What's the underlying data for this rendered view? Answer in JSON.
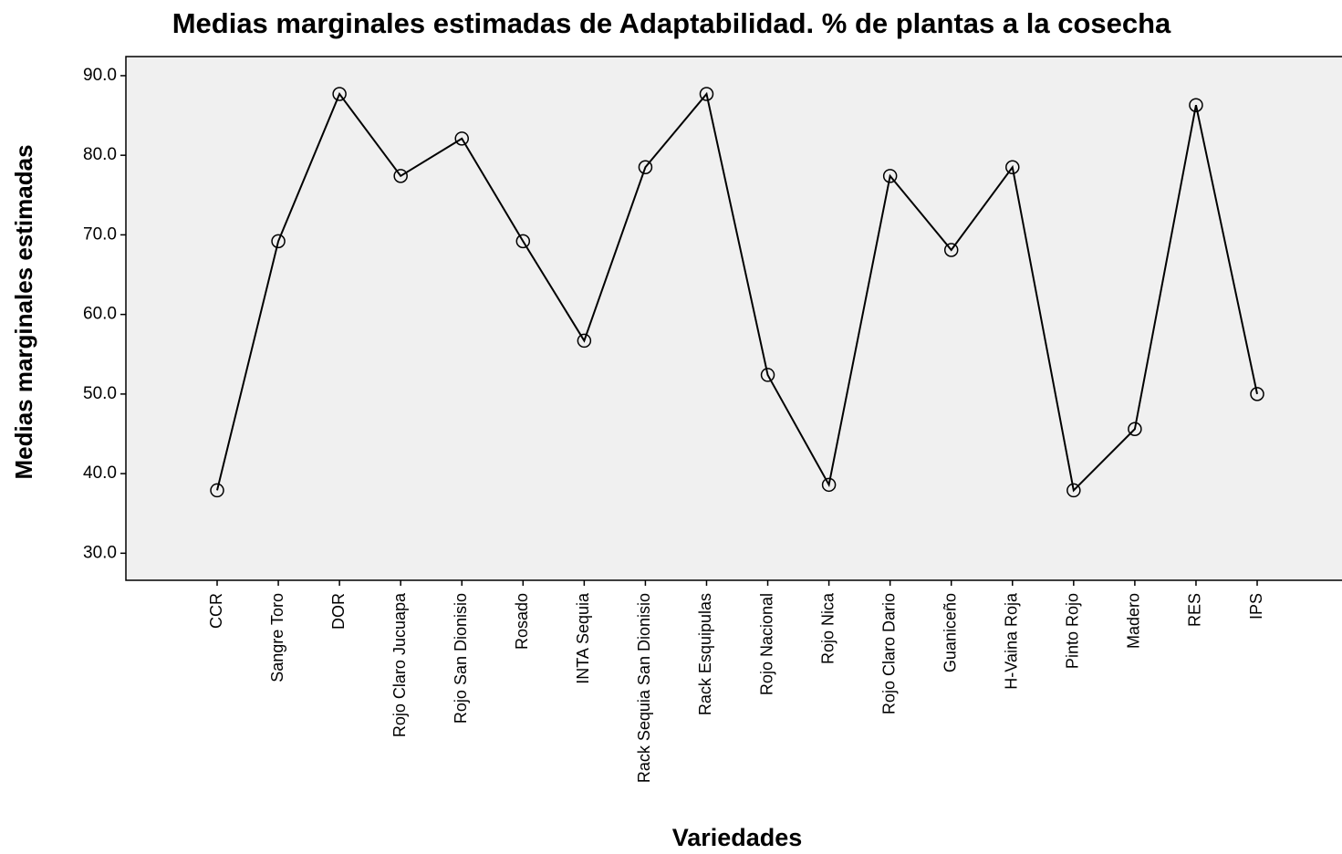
{
  "chart_data": {
    "type": "line",
    "title": "Medias marginales estimadas de Adaptabilidad. % de plantas a la cosecha",
    "x_label": "Variedades",
    "y_label": "Medias marginales estimadas",
    "categories": [
      "CCR",
      "Sangre Toro",
      "DOR",
      "Rojo Claro Jucuapa",
      "Rojo San Dionisio",
      "Rosado",
      "INTA Sequia",
      "Rack Sequia San Dionisio",
      "Rack Esquipulas",
      "Rojo Nacional",
      "Rojo Nica",
      "Rojo Claro Dario",
      "Guaniceño",
      "H-Vaina Roja",
      "Pinto Rojo",
      "Madero",
      "RES",
      "IPS"
    ],
    "series": [
      {
        "name": "Adaptabilidad",
        "color": "#000000",
        "values": [
          37.9,
          69.2,
          87.7,
          77.4,
          82.1,
          69.2,
          56.7,
          78.5,
          87.7,
          52.4,
          38.6,
          77.4,
          68.1,
          78.5,
          37.9,
          45.6,
          86.3,
          50.0
        ]
      }
    ],
    "ylim": [
      26.6,
      92.4
    ],
    "yticks": [
      {
        "value": 30,
        "label": "30.0"
      },
      {
        "value": 40,
        "label": "40.0"
      },
      {
        "value": 50,
        "label": "50.0"
      },
      {
        "value": 60,
        "label": "60.0"
      },
      {
        "value": 70,
        "label": "70.0"
      },
      {
        "value": 80,
        "label": "80.0"
      },
      {
        "value": 90,
        "label": "90.0"
      }
    ],
    "grid": false
  }
}
